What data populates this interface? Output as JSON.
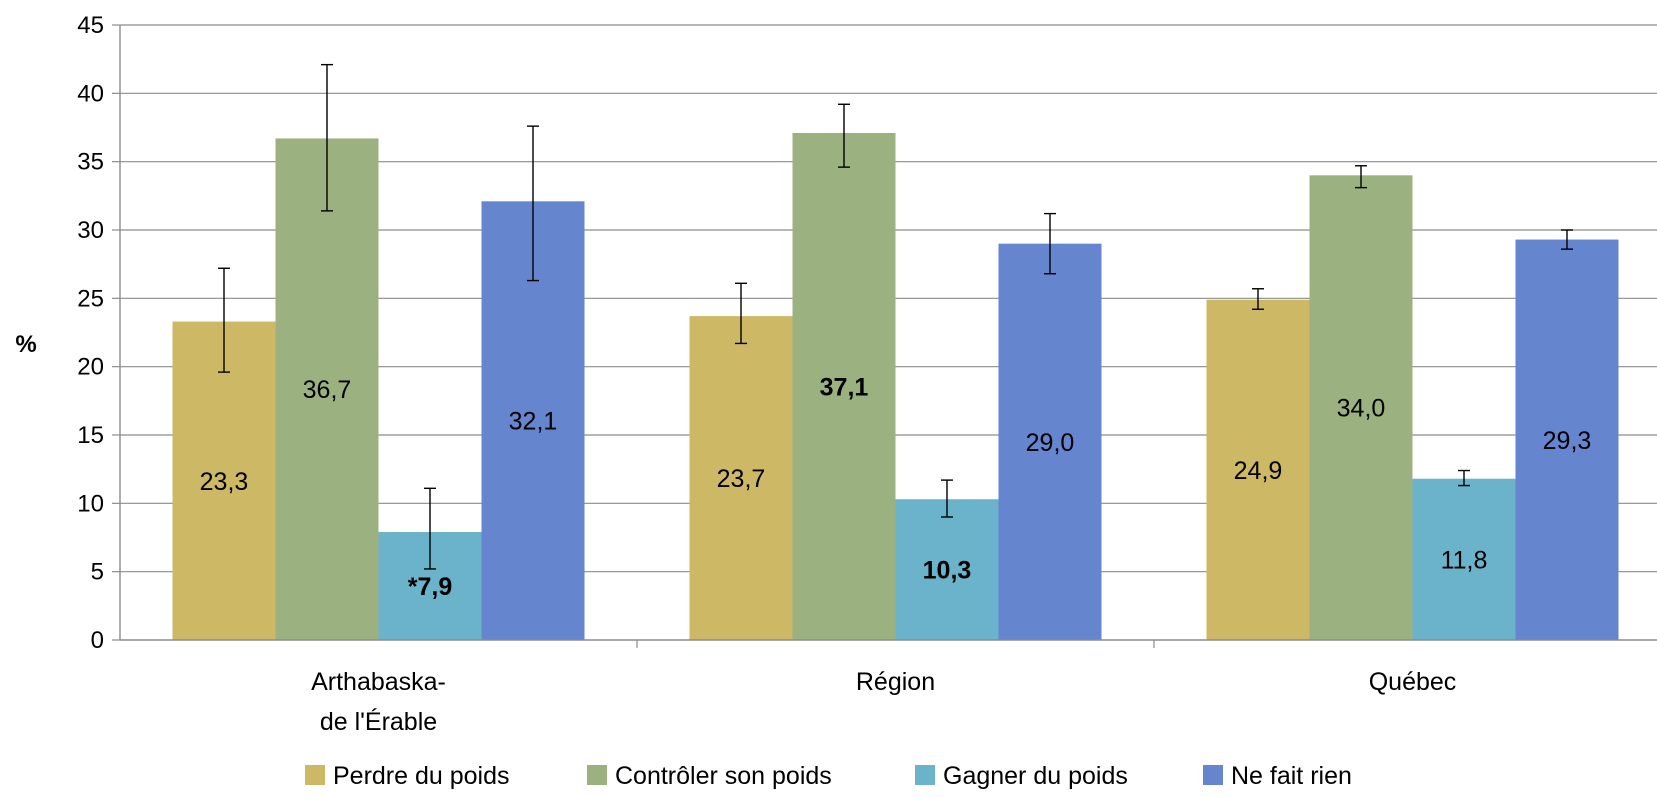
{
  "chart_data": {
    "type": "bar",
    "title": "",
    "ylabel": "%",
    "xlabel": "",
    "ylim": [
      0,
      45
    ],
    "yticks": [
      0,
      5,
      10,
      15,
      20,
      25,
      30,
      35,
      40,
      45
    ],
    "grid": true,
    "legend_position": "bottom",
    "categories": [
      [
        "Arthabaska-",
        "de l'Érable"
      ],
      [
        "Région"
      ],
      [
        "Québec"
      ]
    ],
    "series": [
      {
        "name": "Perdre du poids",
        "color": "#CDB866",
        "values": [
          23.3,
          23.7,
          24.9
        ],
        "labels": [
          "23,3",
          "23,7",
          "24,9"
        ],
        "bold": [
          false,
          false,
          false
        ],
        "error_low": [
          19.6,
          21.7,
          24.2
        ],
        "error_high": [
          27.2,
          26.1,
          25.7
        ]
      },
      {
        "name": "Contrôler son poids",
        "color": "#9BB180",
        "values": [
          36.7,
          37.1,
          34.0
        ],
        "labels": [
          "36,7",
          "37,1",
          "34,0"
        ],
        "bold": [
          false,
          true,
          false
        ],
        "error_low": [
          31.4,
          34.6,
          33.1
        ],
        "error_high": [
          42.1,
          39.2,
          34.7
        ]
      },
      {
        "name": "Gagner du poids",
        "color": "#6BB2CB",
        "values": [
          7.9,
          10.3,
          11.8
        ],
        "labels": [
          "*7,9",
          "10,3",
          "11,8"
        ],
        "bold": [
          true,
          true,
          false
        ],
        "error_low": [
          5.2,
          9.0,
          11.3
        ],
        "error_high": [
          11.1,
          11.7,
          12.4
        ]
      },
      {
        "name": "Ne fait rien",
        "color": "#6585CF",
        "values": [
          32.1,
          29.0,
          29.3
        ],
        "labels": [
          "32,1",
          "29,0",
          "29,3"
        ],
        "bold": [
          false,
          false,
          false
        ],
        "error_low": [
          26.3,
          26.8,
          28.6
        ],
        "error_high": [
          37.6,
          31.2,
          30.0
        ]
      }
    ]
  }
}
